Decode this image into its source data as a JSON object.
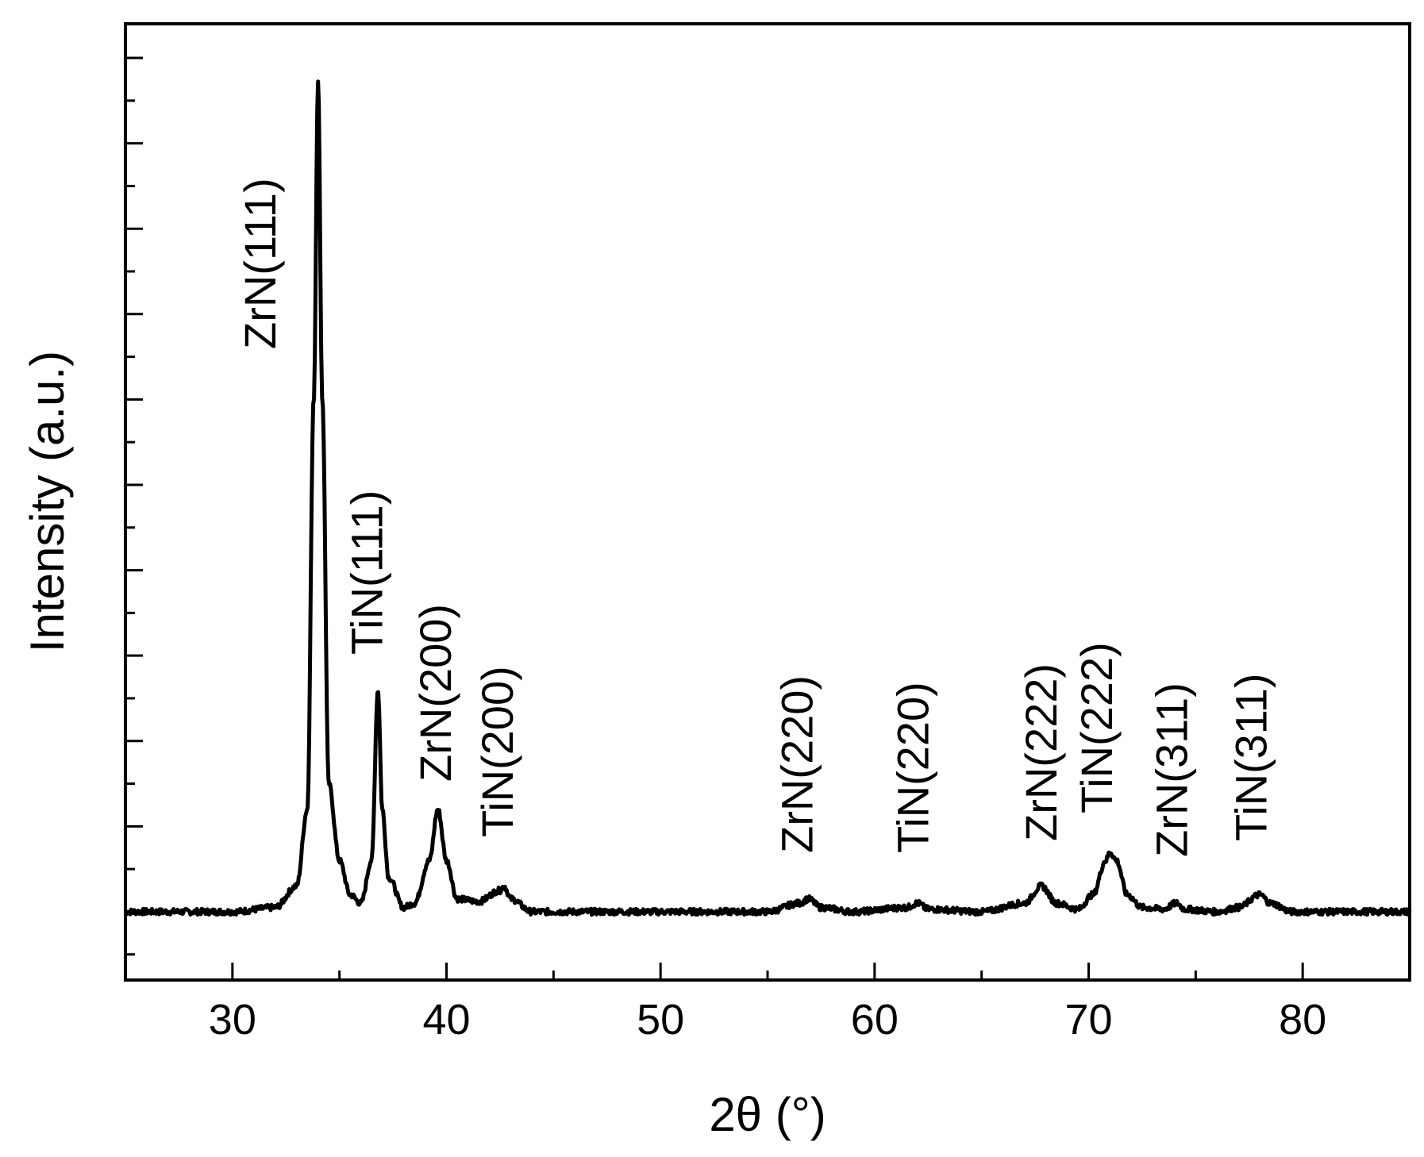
{
  "chart_data": {
    "type": "line",
    "title": "",
    "xlabel": "2θ (°)",
    "ylabel": "Intensity (a.u.)",
    "xlim": [
      25,
      85
    ],
    "ylim": [
      -0.08,
      1.04
    ],
    "x_ticks": [
      30,
      40,
      50,
      60,
      70,
      80
    ],
    "x_tick_labels": [
      "30",
      "40",
      "50",
      "60",
      "70",
      "80"
    ],
    "x_minor_step": 5,
    "y_tick_labels": false,
    "grid": false,
    "legend": "none",
    "line_color": "#000000",
    "series": [
      {
        "points": [
          [
            25.0,
            0.0
          ],
          [
            30.0,
            0.0
          ],
          [
            32.0,
            0.005
          ],
          [
            33.0,
            0.03
          ],
          [
            33.5,
            0.12
          ],
          [
            33.8,
            0.6
          ],
          [
            34.0,
            0.975
          ],
          [
            34.2,
            0.6
          ],
          [
            34.5,
            0.15
          ],
          [
            35.0,
            0.06
          ],
          [
            35.5,
            0.02
          ],
          [
            36.0,
            0.01
          ],
          [
            36.5,
            0.06
          ],
          [
            36.8,
            0.26
          ],
          [
            37.0,
            0.12
          ],
          [
            37.3,
            0.04
          ],
          [
            38.0,
            0.005
          ],
          [
            38.5,
            0.01
          ],
          [
            39.2,
            0.06
          ],
          [
            39.6,
            0.12
          ],
          [
            40.0,
            0.06
          ],
          [
            40.5,
            0.015
          ],
          [
            41.5,
            0.012
          ],
          [
            42.5,
            0.025
          ],
          [
            42.7,
            0.03
          ],
          [
            43.0,
            0.015
          ],
          [
            44.0,
            0.0
          ],
          [
            50.0,
            0.0
          ],
          [
            55.0,
            0.0
          ],
          [
            56.5,
            0.01
          ],
          [
            56.9,
            0.015
          ],
          [
            57.5,
            0.005
          ],
          [
            59.0,
            0.0
          ],
          [
            61.5,
            0.005
          ],
          [
            62.0,
            0.01
          ],
          [
            62.5,
            0.003
          ],
          [
            65.0,
            0.0
          ],
          [
            67.0,
            0.01
          ],
          [
            67.8,
            0.03
          ],
          [
            68.5,
            0.01
          ],
          [
            69.5,
            0.003
          ],
          [
            70.2,
            0.02
          ],
          [
            70.8,
            0.06
          ],
          [
            71.0,
            0.07
          ],
          [
            71.3,
            0.06
          ],
          [
            71.8,
            0.02
          ],
          [
            72.5,
            0.005
          ],
          [
            73.5,
            0.003
          ],
          [
            74.1,
            0.01
          ],
          [
            74.5,
            0.003
          ],
          [
            76.0,
            0.0
          ],
          [
            77.0,
            0.005
          ],
          [
            78.0,
            0.02
          ],
          [
            78.5,
            0.01
          ],
          [
            79.5,
            0.0
          ],
          [
            85.0,
            0.0
          ]
        ]
      }
    ],
    "annotations": [
      {
        "text": "ZrN(111)",
        "x": 32.0
      },
      {
        "text": "TiN(111)",
        "x": 37.0
      },
      {
        "text": "ZrN(200)",
        "x": 40.2
      },
      {
        "text": "TiN(200)",
        "x": 43.1
      },
      {
        "text": "ZrN(220)",
        "x": 57.1
      },
      {
        "text": "TiN(220)",
        "x": 62.5
      },
      {
        "text": "ZrN(222)",
        "x": 68.5
      },
      {
        "text": "TiN(222)",
        "x": 71.1
      },
      {
        "text": "ZrN(311)",
        "x": 74.6
      },
      {
        "text": "TiN(311)",
        "x": 78.3
      }
    ]
  }
}
